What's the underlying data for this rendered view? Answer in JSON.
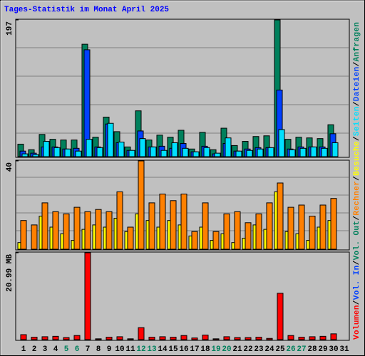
{
  "title": "Tages-Statistik im Monat April 2025",
  "legend_separator": "/",
  "chart_data": [
    {
      "type": "bar",
      "ylim": [
        0,
        197
      ],
      "yticks": [
        197
      ],
      "series": [
        {
          "name": "Anfragen",
          "color": "#00805c",
          "values": [
            18,
            10,
            32,
            25,
            24,
            24,
            162,
            28,
            57,
            36,
            14,
            66,
            24,
            31,
            28,
            38,
            11,
            35,
            10,
            41,
            16,
            22,
            29,
            30,
            197,
            25,
            28,
            27,
            26,
            46,
            null
          ]
        },
        {
          "name": "Dateien",
          "color": "#0040ff",
          "values": [
            8,
            5,
            14,
            14,
            11,
            12,
            154,
            14,
            47,
            20,
            9,
            37,
            14,
            15,
            12,
            19,
            7,
            15,
            4,
            19,
            8,
            11,
            13,
            13,
            96,
            11,
            14,
            14,
            14,
            33,
            null
          ]
        },
        {
          "name": "Seiten",
          "color": "#00e0ff",
          "values": [
            4,
            3,
            22,
            13,
            11,
            8,
            25,
            13,
            48,
            21,
            9,
            26,
            14,
            9,
            20,
            12,
            7,
            13,
            5,
            27,
            8,
            9,
            11,
            13,
            39,
            10,
            12,
            14,
            12,
            20,
            null
          ]
        }
      ]
    },
    {
      "type": "bar",
      "ylim": [
        0,
        40
      ],
      "yticks": [
        40
      ],
      "series": [
        {
          "name": "Besuche",
          "color": "#ffff00",
          "values": [
            3,
            0,
            15,
            10,
            7,
            4,
            9,
            11,
            10,
            14,
            8,
            16,
            13,
            10,
            13,
            11,
            6,
            10,
            4,
            7,
            3,
            5,
            11,
            9,
            26,
            8,
            7,
            4,
            10,
            13,
            null
          ]
        },
        {
          "name": "Rechner",
          "color": "#ff8000",
          "values": [
            13,
            11,
            21,
            17,
            16,
            19,
            17,
            18,
            17,
            26,
            10,
            40,
            21,
            25,
            22,
            25,
            8,
            21,
            8,
            16,
            17,
            12,
            16,
            21,
            30,
            19,
            20,
            15,
            20,
            23,
            null
          ]
        }
      ]
    },
    {
      "type": "bar",
      "ylim": [
        0,
        20.99
      ],
      "yticks": [
        {
          "value": 20.99,
          "label": "20.99 MB"
        }
      ],
      "series": [
        {
          "name": "Volumen",
          "color": "#ff0000",
          "values": [
            1.2,
            0.6,
            0.7,
            0.8,
            0.5,
            1.0,
            20.99,
            0.2,
            0.6,
            0.7,
            0.2,
            2.9,
            0.6,
            0.7,
            0.6,
            1.0,
            0.4,
            1.1,
            0.2,
            0.7,
            0.5,
            0.5,
            0.6,
            0.3,
            11.2,
            1.0,
            0.6,
            0.7,
            0.8,
            1.4,
            null
          ]
        }
      ],
      "extra_legend": [
        {
          "name": "Vol. In",
          "color": "#0040ff"
        },
        {
          "name": "Vol. Out",
          "color": "#00805c"
        }
      ],
      "categories": [
        "1",
        "2",
        "3",
        "4",
        "5",
        "6",
        "7",
        "8",
        "9",
        "10",
        "11",
        "12",
        "13",
        "14",
        "15",
        "16",
        "17",
        "18",
        "19",
        "20",
        "21",
        "22",
        "23",
        "24",
        "25",
        "26",
        "27",
        "28",
        "29",
        "30",
        "31"
      ],
      "weekends": [
        5,
        6,
        12,
        13,
        19,
        20,
        26,
        27
      ],
      "weekend_color": "#00805c",
      "weekday_color": "#000000"
    }
  ]
}
